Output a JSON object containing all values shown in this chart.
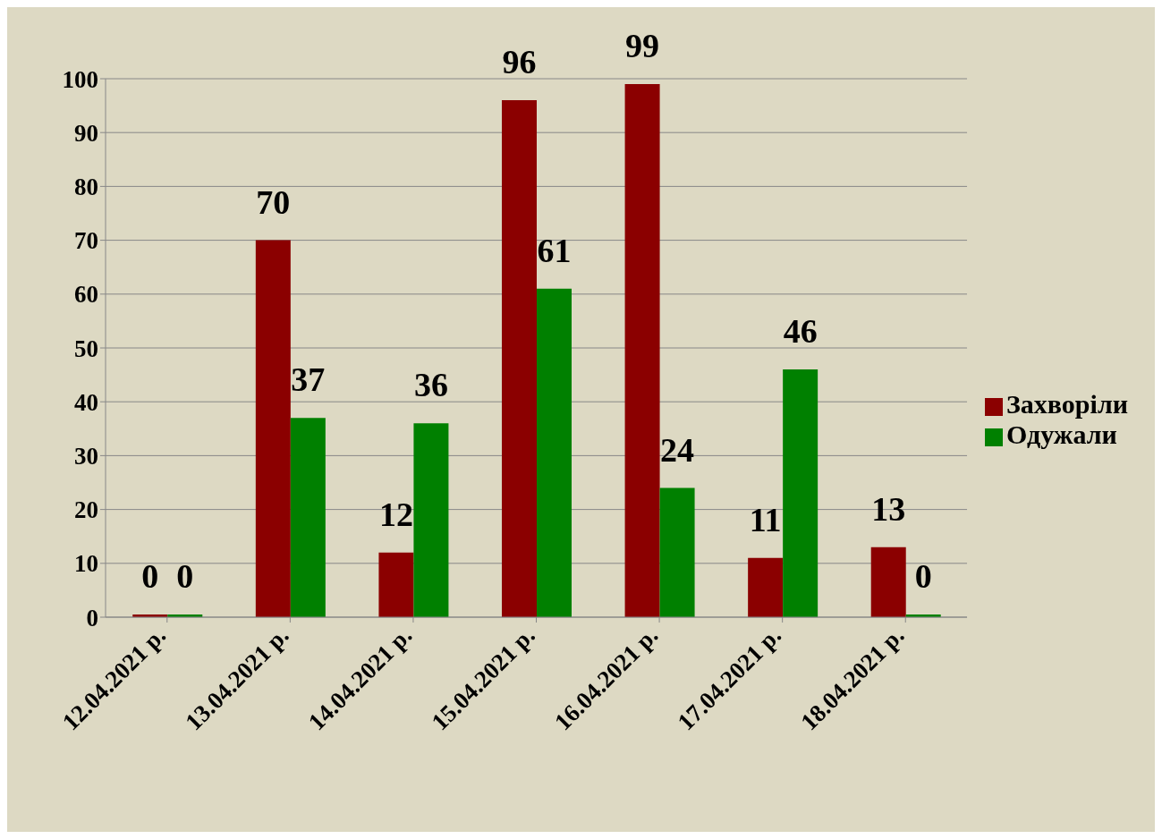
{
  "chart_data": {
    "type": "bar",
    "categories": [
      "12.04.2021 р.",
      "13.04.2021 р.",
      "14.04.2021 р.",
      "15.04.2021 р.",
      "16.04.2021 р.",
      "17.04.2021 р.",
      "18.04.2021 р."
    ],
    "series": [
      {
        "name": "Захворіли",
        "color": "#8b0000",
        "values": [
          0,
          70,
          12,
          96,
          99,
          11,
          13
        ]
      },
      {
        "name": "Одужали",
        "color": "#008000",
        "values": [
          0,
          37,
          36,
          61,
          24,
          46,
          0
        ]
      }
    ],
    "ylim": [
      0,
      100
    ],
    "yticks": [
      0,
      10,
      20,
      30,
      40,
      50,
      60,
      70,
      80,
      90,
      100
    ],
    "grid": "y",
    "legend": "right",
    "data_labels": true
  }
}
